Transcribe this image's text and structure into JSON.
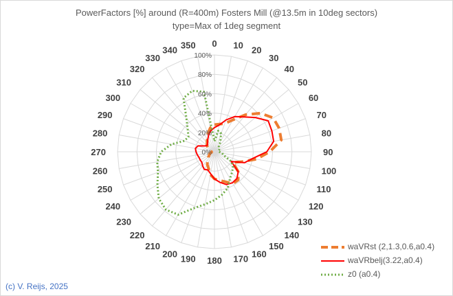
{
  "chart_data": {
    "type": "radar",
    "title": "PowerFactors [%] around (R=400m) Fosters Mill (@13.5m in 10deg sectors)",
    "subtitle": "type=Max of 1deg segment",
    "radial_ticks": [
      "0%",
      "20%",
      "40%",
      "60%",
      "80%",
      "100%"
    ],
    "rlim": [
      0,
      100
    ],
    "directions": [
      "0",
      "10",
      "20",
      "30",
      "40",
      "50",
      "60",
      "70",
      "80",
      "90",
      "100",
      "110",
      "120",
      "130",
      "140",
      "150",
      "160",
      "170",
      "180",
      "190",
      "200",
      "210",
      "220",
      "230",
      "240",
      "250",
      "260",
      "270",
      "280",
      "290",
      "300",
      "310",
      "320",
      "330",
      "340",
      "350"
    ],
    "series": [
      {
        "name": "waVRst (2,1.3,0.6,a0.4)",
        "color": "#ed7d31",
        "style": "dashed",
        "values": [
          28,
          29,
          31,
          38,
          50,
          62,
          70,
          71,
          70,
          57,
          44,
          30,
          22,
          32,
          38,
          38,
          33,
          30,
          28,
          24,
          18,
          15,
          10,
          8,
          6,
          5,
          3,
          3,
          4,
          5,
          8,
          10,
          12,
          15,
          20,
          25
        ]
      },
      {
        "name": "waVRbelj(3.22,a0.4)",
        "color": "#ff0000",
        "style": "solid",
        "values": [
          25,
          28,
          35,
          42,
          47,
          55,
          64,
          63,
          62,
          54,
          40,
          33,
          20,
          32,
          36,
          37,
          36,
          32,
          28,
          23,
          20,
          21,
          19,
          17,
          17,
          17,
          18,
          19,
          20,
          18,
          12,
          10,
          11,
          14,
          18,
          22
        ]
      },
      {
        "name": "z0 (a0.4)",
        "color": "#70ad47",
        "style": "dotted",
        "values": [
          11,
          22,
          20,
          12,
          7,
          6,
          6,
          5,
          4,
          5,
          8,
          10,
          20,
          25,
          28,
          32,
          40,
          45,
          50,
          55,
          62,
          75,
          78,
          75,
          68,
          62,
          60,
          55,
          45,
          33,
          31,
          36,
          45,
          64,
          67,
          63
        ]
      }
    ]
  },
  "credit": "(c) V. Reijs, 2025"
}
